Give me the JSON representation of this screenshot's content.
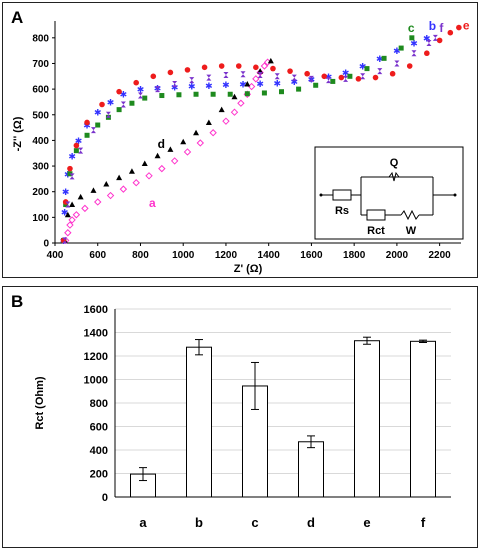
{
  "chart_data": [
    {
      "panel_label": "A",
      "type": "scatter",
      "xlabel": "Z' (Ω)",
      "ylabel": "-Z'' (Ω)",
      "xlim": [
        400,
        2300
      ],
      "ylim": [
        0,
        850
      ],
      "x_ticks": [
        400,
        600,
        800,
        1000,
        1200,
        1400,
        1600,
        1800,
        2000,
        2200
      ],
      "y_ticks": [
        0,
        100,
        200,
        300,
        400,
        500,
        600,
        700,
        800
      ],
      "series": [
        {
          "name": "a",
          "color": "#ff33cc",
          "marker": "open-diamond",
          "x": [
            450,
            460,
            470,
            480,
            500,
            540,
            600,
            660,
            720,
            780,
            840,
            900,
            960,
            1020,
            1080,
            1140,
            1200,
            1240,
            1270,
            1300,
            1320,
            1340,
            1360,
            1380,
            1395
          ],
          "y": [
            10,
            40,
            70,
            90,
            110,
            135,
            160,
            185,
            210,
            235,
            262,
            290,
            320,
            355,
            390,
            430,
            475,
            510,
            545,
            580,
            610,
            640,
            665,
            690,
            705
          ]
        },
        {
          "name": "b",
          "color": "#3333ff",
          "marker": "star",
          "x": [
            440,
            445,
            450,
            460,
            480,
            510,
            550,
            600,
            660,
            720,
            800,
            880,
            960,
            1040,
            1120,
            1200,
            1280,
            1360,
            1440,
            1520,
            1600,
            1680,
            1760,
            1840,
            1920,
            2000,
            2080,
            2140
          ],
          "y": [
            10,
            120,
            200,
            270,
            340,
            400,
            460,
            510,
            550,
            580,
            600,
            605,
            608,
            612,
            615,
            618,
            620,
            622,
            624,
            630,
            640,
            650,
            665,
            690,
            720,
            750,
            780,
            800
          ]
        },
        {
          "name": "c",
          "color": "#1e8a1e",
          "marker": "square",
          "x": [
            440,
            450,
            470,
            500,
            550,
            600,
            650,
            700,
            760,
            820,
            900,
            980,
            1060,
            1140,
            1220,
            1300,
            1380,
            1460,
            1540,
            1620,
            1700,
            1780,
            1860,
            1940,
            2020,
            2070
          ],
          "y": [
            10,
            150,
            270,
            360,
            420,
            460,
            490,
            520,
            545,
            565,
            575,
            578,
            580,
            580,
            580,
            582,
            585,
            590,
            600,
            615,
            630,
            650,
            680,
            720,
            760,
            800
          ]
        },
        {
          "name": "d",
          "color": "#000000",
          "marker": "triangle",
          "x": [
            445,
            460,
            480,
            520,
            580,
            640,
            700,
            760,
            820,
            880,
            940,
            1000,
            1060,
            1120,
            1180,
            1240,
            1300,
            1360,
            1410
          ],
          "y": [
            10,
            110,
            150,
            180,
            205,
            230,
            255,
            280,
            310,
            340,
            365,
            395,
            430,
            470,
            520,
            570,
            620,
            670,
            710
          ]
        },
        {
          "name": "e",
          "color": "#ee1c1c",
          "marker": "circle",
          "x": [
            440,
            450,
            470,
            500,
            550,
            620,
            700,
            780,
            860,
            940,
            1020,
            1100,
            1180,
            1260,
            1340,
            1420,
            1500,
            1580,
            1660,
            1740,
            1820,
            1900,
            1980,
            2060,
            2140,
            2200,
            2250,
            2290
          ],
          "y": [
            10,
            160,
            290,
            380,
            470,
            540,
            590,
            625,
            650,
            665,
            675,
            685,
            690,
            690,
            685,
            680,
            670,
            660,
            650,
            645,
            640,
            645,
            660,
            690,
            740,
            790,
            820,
            840
          ]
        },
        {
          "name": "f",
          "color": "#7a33cc",
          "marker": "hourglass",
          "x": [
            445,
            460,
            480,
            520,
            580,
            650,
            720,
            800,
            880,
            960,
            1040,
            1120,
            1200,
            1280,
            1360,
            1440,
            1520,
            1600,
            1680,
            1760,
            1840,
            1920,
            2000,
            2080,
            2150,
            2180
          ],
          "y": [
            10,
            150,
            260,
            360,
            440,
            500,
            540,
            575,
            600,
            620,
            635,
            645,
            655,
            658,
            655,
            650,
            645,
            640,
            635,
            640,
            650,
            670,
            700,
            740,
            780,
            800
          ]
        }
      ],
      "inset": {
        "labels": [
          "Q",
          "Rs",
          "Rct",
          "W"
        ]
      }
    },
    {
      "panel_label": "B",
      "type": "bar",
      "categories": [
        "a",
        "b",
        "c",
        "d",
        "e",
        "f"
      ],
      "values": [
        195,
        1275,
        945,
        470,
        1330,
        1325
      ],
      "errors": [
        55,
        65,
        200,
        50,
        30,
        10
      ],
      "ylabel": "Rct (Ohm)",
      "ylim": [
        0,
        1600
      ],
      "y_ticks": [
        0,
        200,
        400,
        600,
        800,
        1000,
        1200,
        1400,
        1600
      ]
    }
  ]
}
